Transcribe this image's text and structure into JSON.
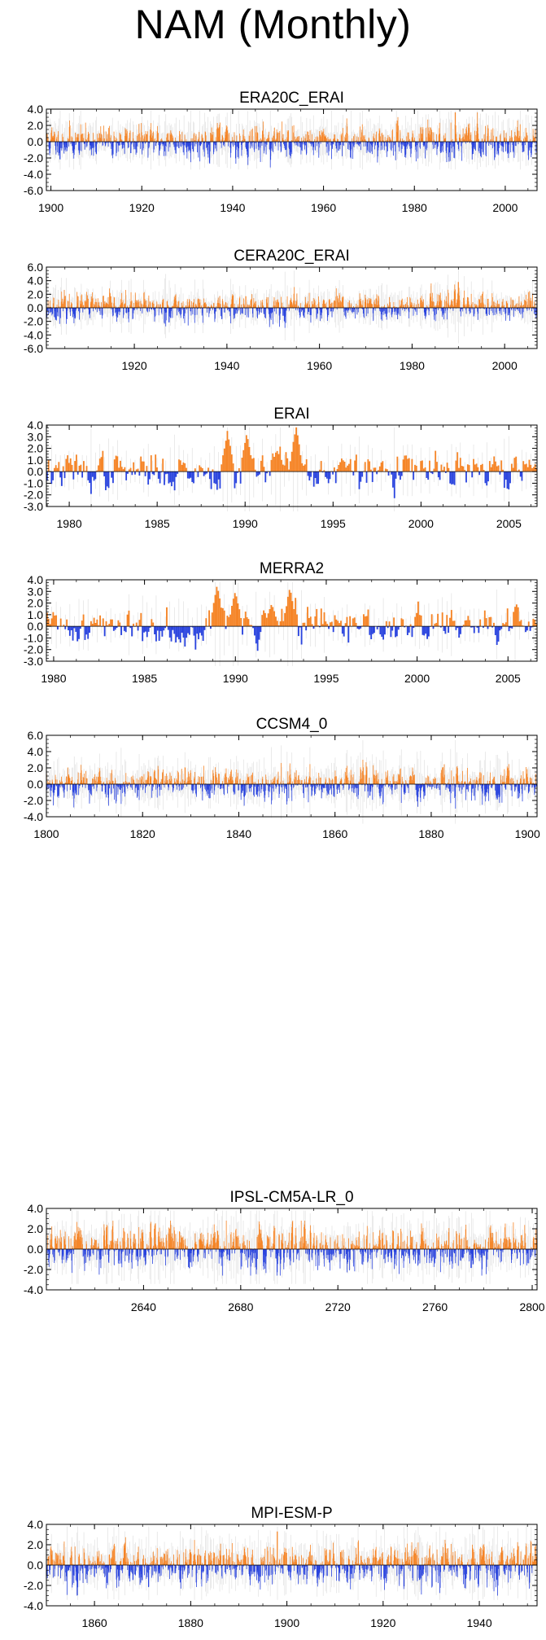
{
  "title": "NAM (Monthly)",
  "colors": {
    "positive": "#f58426",
    "negative": "#2a44de",
    "variance": "#bfbfbf",
    "axis": "#000000"
  },
  "chart_data": [
    {
      "type": "bar",
      "title": "ERA20C_ERAI",
      "ylim": [
        -6,
        4
      ],
      "yticks": [
        "4.0",
        "2.0",
        "0.0",
        "-2.0",
        "-4.0",
        "-6.0"
      ],
      "ytick_values": [
        4,
        2,
        0,
        -2,
        -4,
        -6
      ],
      "xlim": [
        1899,
        2007
      ],
      "xticks": [
        1900,
        1920,
        1940,
        1960,
        1980,
        2000
      ],
      "samples_per_unit": 12,
      "amplitude": 0.9,
      "max_abs": 3.6,
      "min_value": -4.8,
      "peak_year": 1989,
      "seed": 11
    },
    {
      "type": "bar",
      "title": "CERA20C_ERAI",
      "ylim": [
        -6,
        6
      ],
      "yticks": [
        "6.0",
        "4.0",
        "2.0",
        "0.0",
        "-2.0",
        "-4.0",
        "-6.0"
      ],
      "ytick_values": [
        6,
        4,
        2,
        0,
        -2,
        -4,
        -6
      ],
      "xlim": [
        1901,
        2007
      ],
      "xticks": [
        1920,
        1940,
        1960,
        1980,
        2000
      ],
      "samples_per_unit": 12,
      "amplitude": 0.9,
      "max_abs": 3.8,
      "min_value": -4.2,
      "peak_year": 1990,
      "seed": 23
    },
    {
      "type": "bar",
      "title": "ERAI",
      "ylim": [
        -3,
        4
      ],
      "yticks": [
        "4.0",
        "3.0",
        "2.0",
        "1.0",
        "0.0",
        "-1.0",
        "-2.0",
        "-3.0"
      ],
      "ytick_values": [
        4,
        3,
        2,
        1,
        0,
        -1,
        -2,
        -3
      ],
      "xlim": [
        1978.7,
        2006.6
      ],
      "xticks": [
        1980,
        1985,
        1990,
        1995,
        2000,
        2005
      ],
      "samples_per_unit": 12,
      "amplitude": 0.7,
      "max_abs": 3.8,
      "min_value": -2.3,
      "peaks": [
        [
          1989.0,
          3.4
        ],
        [
          1990.1,
          3.2
        ],
        [
          1992.9,
          3.9
        ],
        [
          1991.8,
          1.8
        ]
      ],
      "seed": 37
    },
    {
      "type": "bar",
      "title": "MERRA2",
      "ylim": [
        -3,
        4
      ],
      "yticks": [
        "4.0",
        "3.0",
        "2.0",
        "1.0",
        "0.0",
        "-1.0",
        "-2.0",
        "-3.0"
      ],
      "ytick_values": [
        4,
        3,
        2,
        1,
        0,
        -1,
        -2,
        -3
      ],
      "xlim": [
        1979.6,
        2006.6
      ],
      "xticks": [
        1980,
        1985,
        1990,
        1995,
        2000,
        2005
      ],
      "samples_per_unit": 12,
      "amplitude": 0.7,
      "max_abs": 3.6,
      "min_value": -2.6,
      "peaks": [
        [
          1989.0,
          3.5
        ],
        [
          1990.0,
          3.0
        ],
        [
          1993.0,
          3.3
        ],
        [
          1992.0,
          1.8
        ]
      ],
      "seed": 41
    },
    {
      "type": "bar",
      "title": "CCSM4_0",
      "ylim": [
        -4,
        6
      ],
      "yticks": [
        "6.0",
        "4.0",
        "2.0",
        "0.0",
        "-2.0",
        "-4.0"
      ],
      "ytick_values": [
        6,
        4,
        2,
        0,
        -2,
        -4
      ],
      "xlim": [
        1800,
        1902
      ],
      "xticks": [
        1800,
        1820,
        1840,
        1860,
        1880,
        1900
      ],
      "samples_per_unit": 12,
      "amplitude": 0.9,
      "max_abs": 3.0,
      "min_value": -3.0,
      "seed": 53
    },
    {
      "type": "bar",
      "title": "IPSL-CM5A-LR_0",
      "ylim": [
        -4,
        4
      ],
      "yticks": [
        "4.0",
        "2.0",
        "0.0",
        "-2.0",
        "-4.0"
      ],
      "ytick_values": [
        4,
        2,
        0,
        -2,
        -4
      ],
      "xlim": [
        2600,
        2802
      ],
      "xticks": [
        2640,
        2680,
        2720,
        2760,
        2800
      ],
      "samples_per_unit": 6,
      "amplitude": 0.9,
      "max_abs": 2.8,
      "min_value": -2.6,
      "seed": 67
    },
    {
      "type": "bar",
      "title": "MPI-ESM-P",
      "ylim": [
        -4,
        4
      ],
      "yticks": [
        "4.0",
        "2.0",
        "0.0",
        "-2.0",
        "-4.0"
      ],
      "ytick_values": [
        4,
        2,
        0,
        -2,
        -4
      ],
      "xlim": [
        1850,
        1952
      ],
      "xticks": [
        1860,
        1880,
        1900,
        1920,
        1940
      ],
      "samples_per_unit": 12,
      "amplitude": 0.9,
      "max_abs": 3.3,
      "min_value": -3.0,
      "peak_year": 1898,
      "seed": 79
    }
  ]
}
